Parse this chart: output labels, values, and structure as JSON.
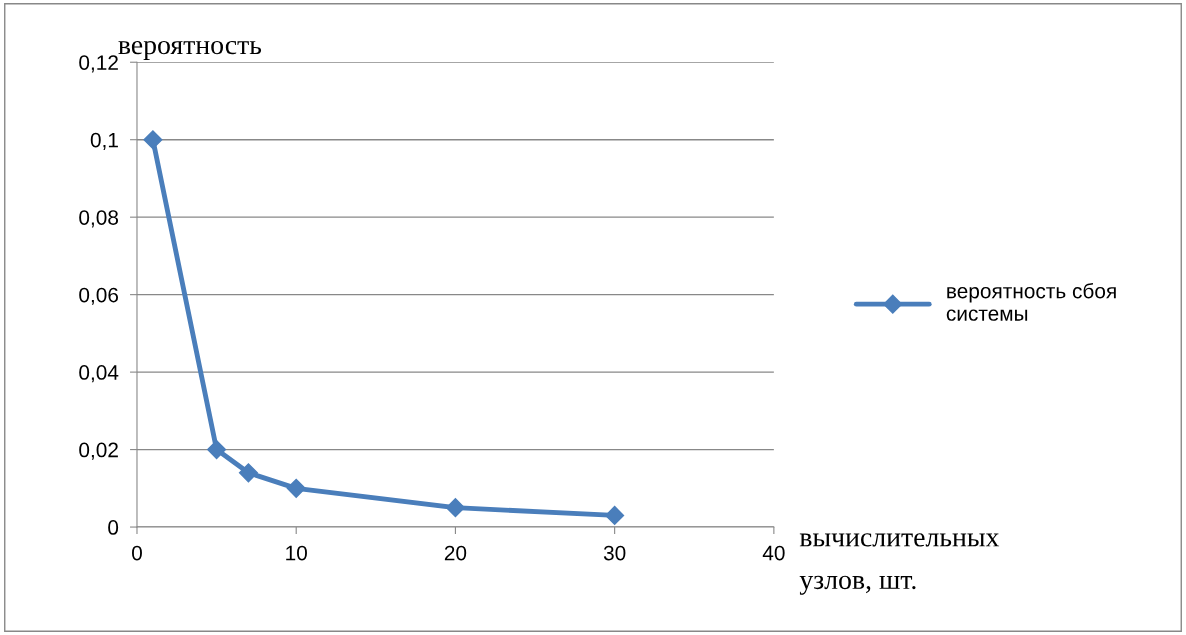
{
  "chart_data": {
    "type": "line",
    "ylabel": "вероятность",
    "xlabel": "вычислительных узлов, шт.",
    "x": [
      1,
      5,
      7,
      10,
      20,
      30
    ],
    "series": [
      {
        "name": "вероятность сбоя системы",
        "color": "#4a7ebb",
        "values": [
          0.1,
          0.02,
          0.014,
          0.01,
          0.005,
          0.003
        ]
      }
    ],
    "xlim": [
      0,
      40
    ],
    "xticks": [
      0,
      10,
      20,
      30,
      40
    ],
    "ylim": [
      0,
      0.12
    ],
    "yticks": [
      {
        "value": 0,
        "label": "0"
      },
      {
        "value": 0.02,
        "label": "0,02"
      },
      {
        "value": 0.04,
        "label": "0,04"
      },
      {
        "value": 0.06,
        "label": "0,06"
      },
      {
        "value": 0.08,
        "label": "0,08"
      },
      {
        "value": 0.1,
        "label": "0,1"
      },
      {
        "value": 0.12,
        "label": "0,12"
      }
    ],
    "grid": "y",
    "legend": "right",
    "marker": "diamond",
    "line_style": "solid"
  }
}
